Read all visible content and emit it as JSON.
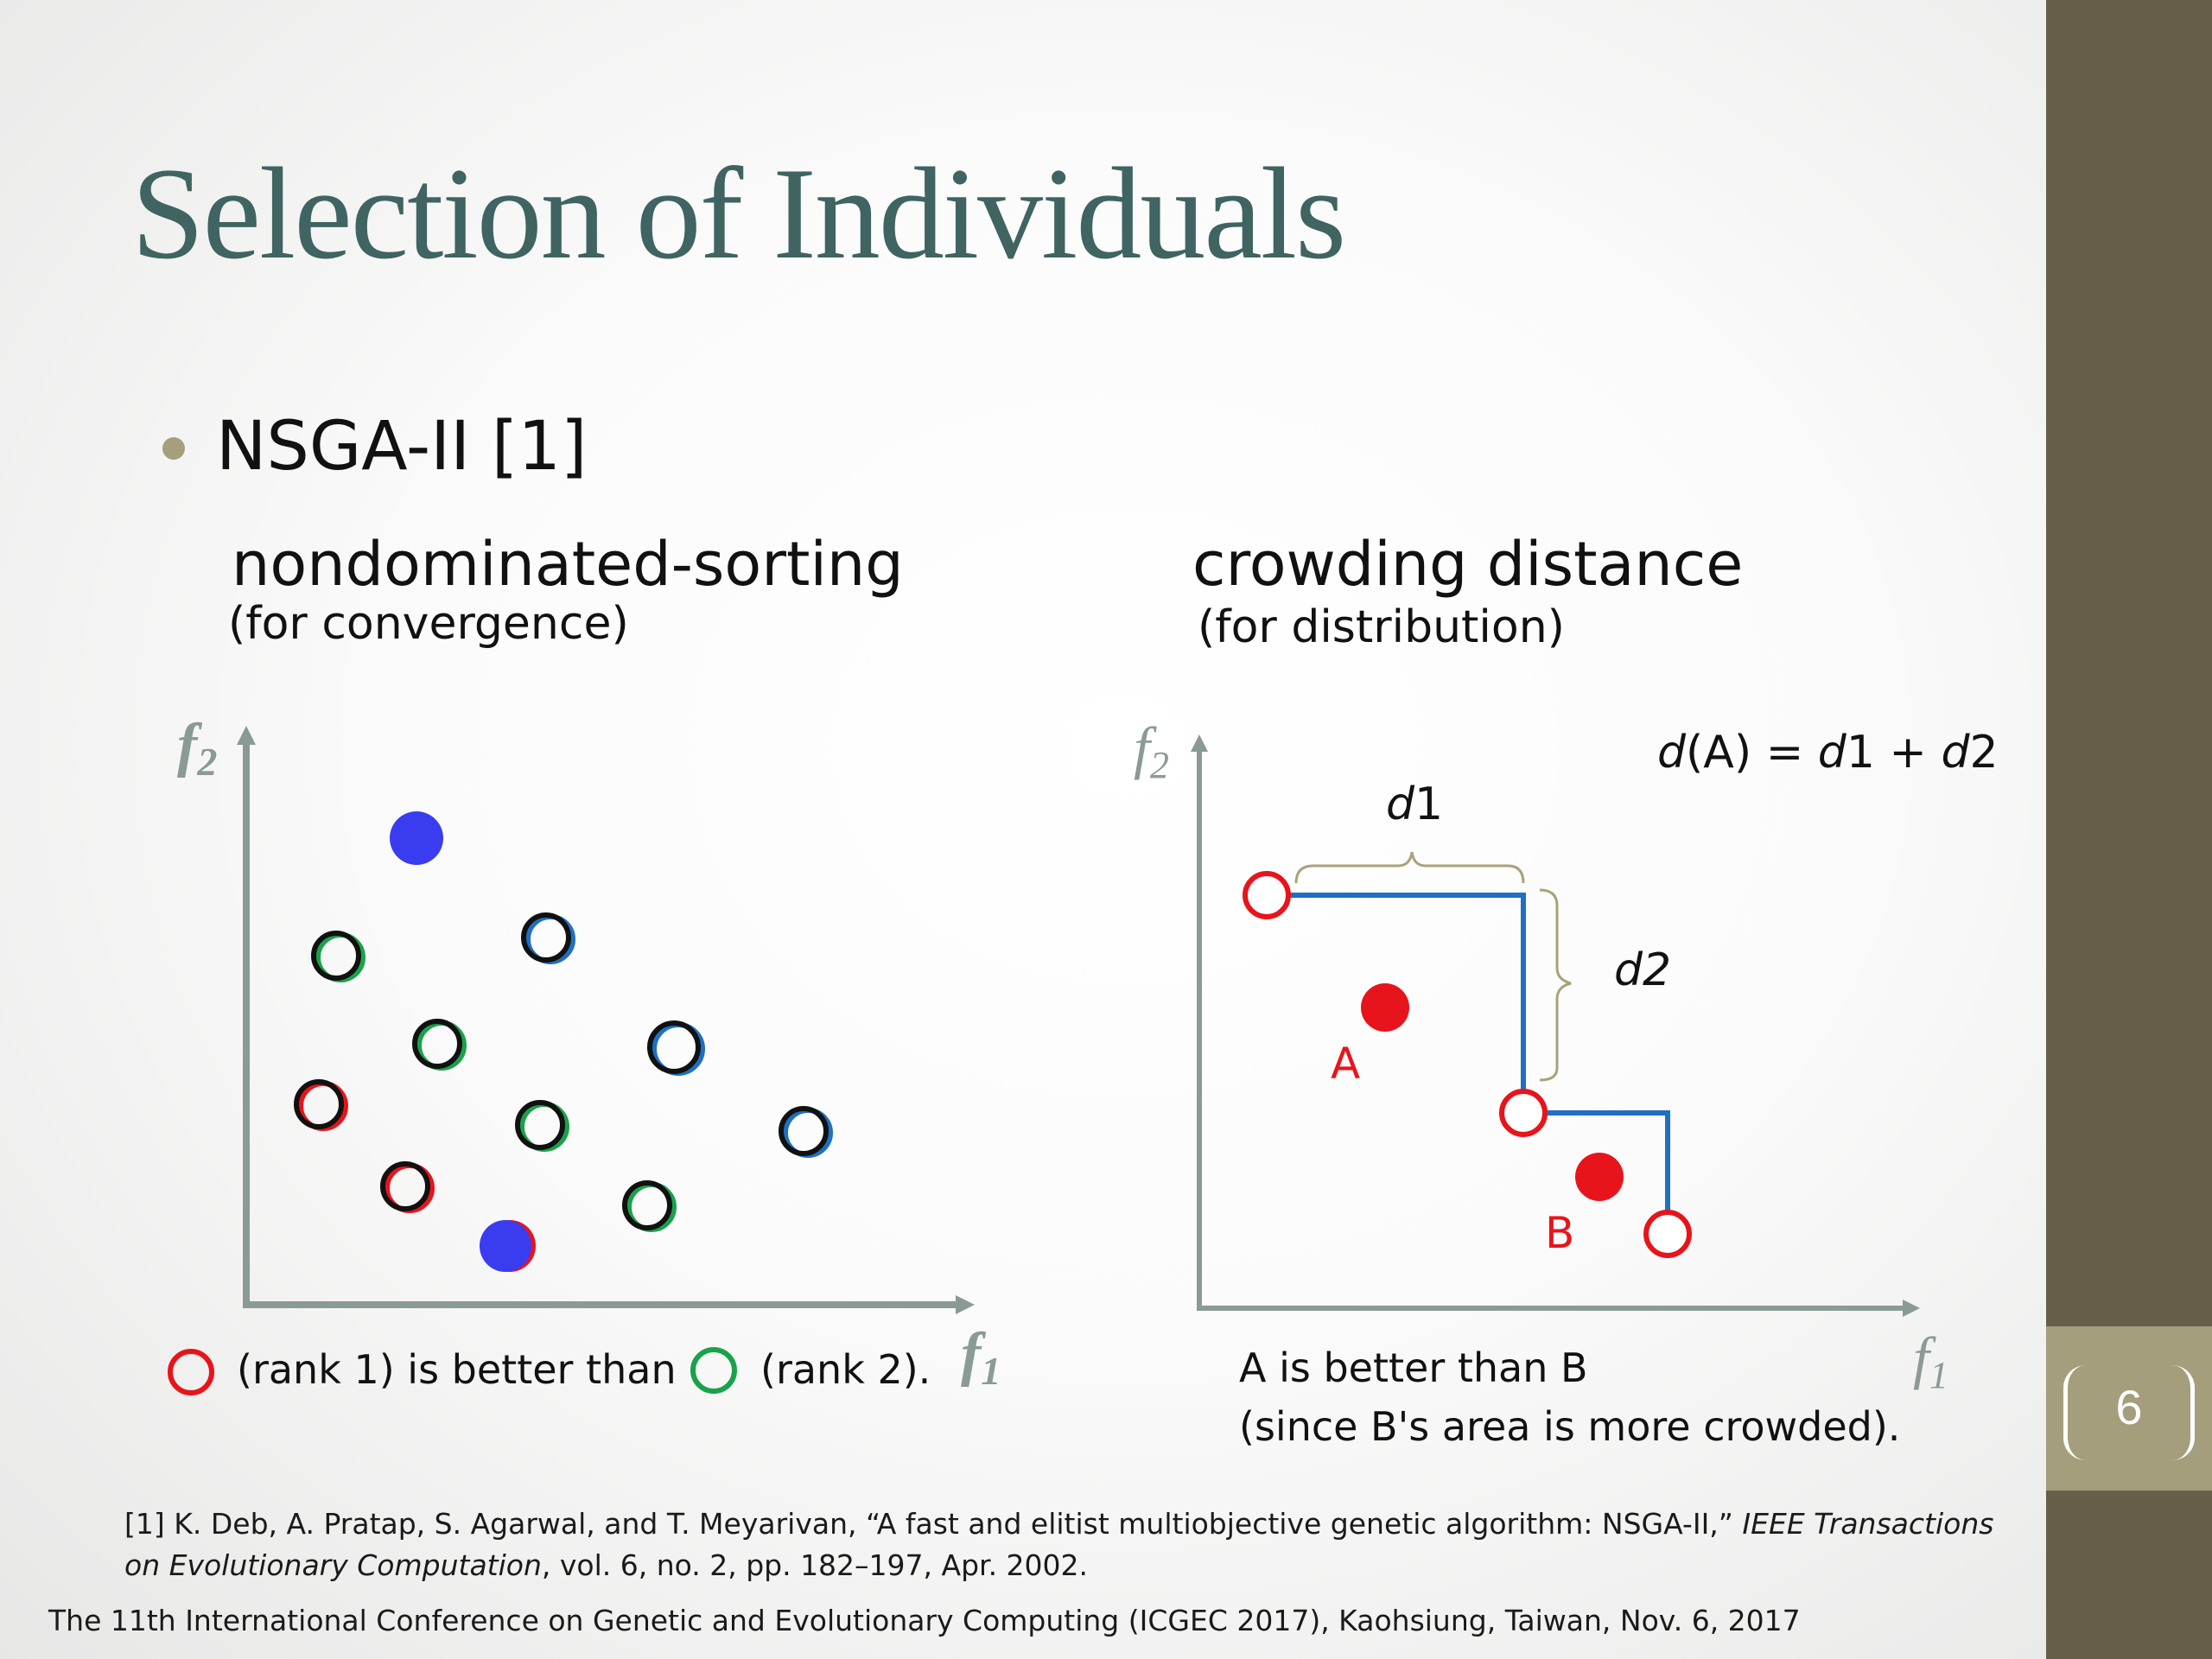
{
  "slide": {
    "title": "Selection of Individuals",
    "bullet": "NSGA-II [1]",
    "page_number": "6"
  },
  "left_panel": {
    "heading": "nondominated-sorting",
    "subheading": "(for convergence)",
    "axis_x": "f",
    "axis_x_sub": "1",
    "axis_y": "f",
    "axis_y_sub": "2",
    "caption_part1": "(rank 1) is better than",
    "caption_part2": "(rank 2).",
    "colors": {
      "rank1": "#e8141b",
      "rank2": "#1aa24a",
      "solution": "#3a3cf0",
      "axis": "#8a9a94"
    }
  },
  "right_panel": {
    "heading": "crowding distance",
    "subheading": "(for distribution)",
    "axis_x": "f",
    "axis_x_sub": "1",
    "axis_y": "f",
    "axis_y_sub": "2",
    "formula": {
      "d": "d",
      "paren": "(A) = ",
      "d1": "d",
      "one": "1 + ",
      "d2": "d",
      "two": "2"
    },
    "label_d1": {
      "d": "d",
      "n": "1"
    },
    "label_d2": {
      "d": "d",
      "n": "2"
    },
    "label_A": "A",
    "label_B": "B",
    "caption_line1": "A is better than B",
    "caption_line2": "(since B's area is more crowded).",
    "colors": {
      "point": "#e8141b",
      "front": "#1f6fc4",
      "brace": "#a9a27a"
    }
  },
  "reference": {
    "prefix": "[1] K. Deb, A. Pratap, S. Agarwal, and T. Meyarivan, “A fast and elitist multiobjective genetic algorithm: NSGA-II,” ",
    "journal": "IEEE Transactions on Evolutionary Computation",
    "suffix": ", vol. 6, no. 2, pp. 182–197, Apr. 2002."
  },
  "footer": "The 11th International Conference on Genetic and Evolutionary Computing (ICGEC 2017), Kaohsiung, Taiwan, Nov. 6, 2017"
}
